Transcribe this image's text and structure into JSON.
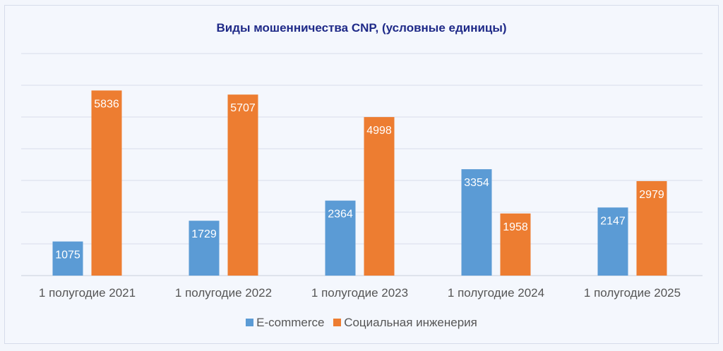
{
  "chart_data": {
    "type": "bar",
    "title": "Виды мошенничества CNP, (условные единицы)",
    "categories": [
      "1 полугодие 2021",
      "1 полугодие 2022",
      "1 полугодие 2023",
      "1 полугодие 2024",
      "1 полугодие 2025"
    ],
    "series": [
      {
        "name": "E-commerce",
        "values": [
          1075,
          1729,
          2364,
          3354,
          2147
        ],
        "color": "#5b9bd5"
      },
      {
        "name": "Социальная инженерия",
        "values": [
          5836,
          5707,
          4998,
          1958,
          2979
        ],
        "color": "#ed7d31"
      }
    ],
    "ylim": [
      0,
      7000
    ],
    "y_gridline_step": 1000,
    "y_tick_labels_shown": false,
    "grid": true,
    "legend": "bottom",
    "data_labels": "inside-end"
  }
}
